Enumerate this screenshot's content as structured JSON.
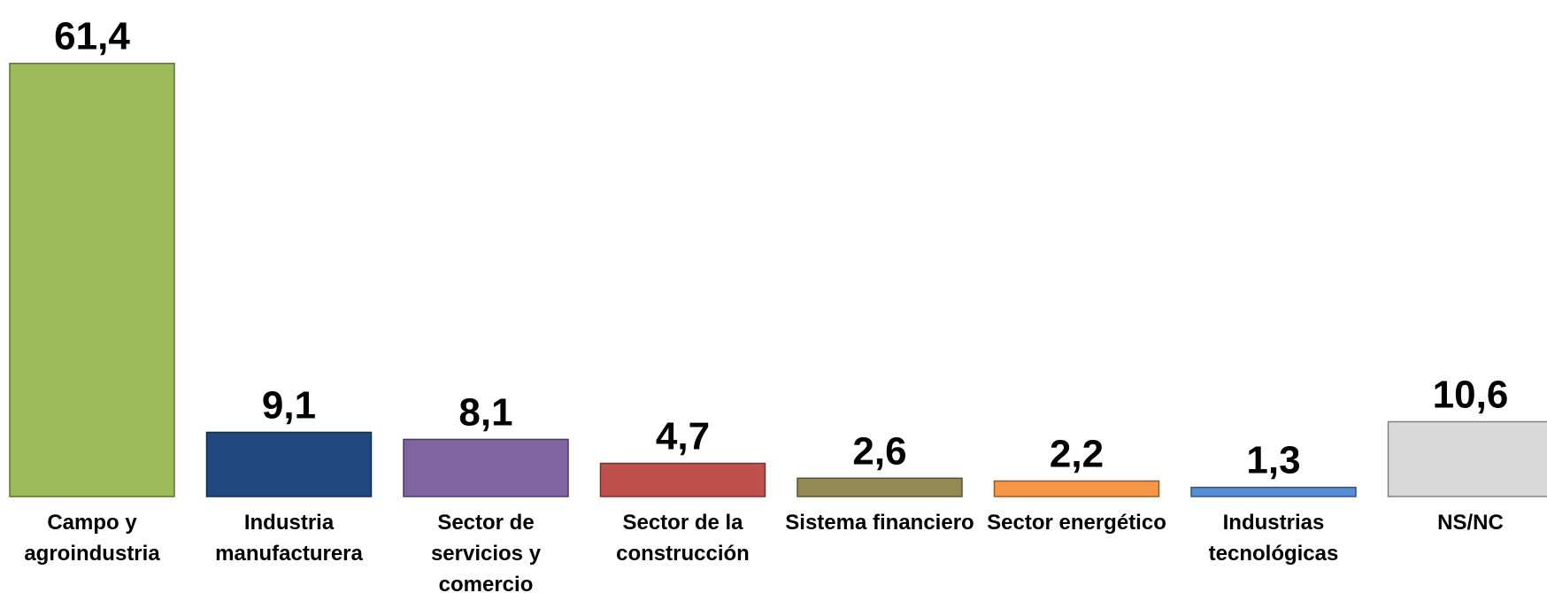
{
  "chart_data": {
    "type": "bar",
    "categories": [
      "Campo y agroindustria",
      "Industria manufacturera",
      "Sector de servicios y comercio",
      "Sector de la construcción",
      "Sistema financiero",
      "Sector energético",
      "Industrias tecnológicas",
      "NS/NC"
    ],
    "values": [
      61.4,
      9.1,
      8.1,
      4.7,
      2.6,
      2.2,
      1.3,
      10.6
    ],
    "value_labels": [
      "61,4",
      "9,1",
      "8,1",
      "4,7",
      "2,6",
      "2,2",
      "1,3",
      "10,6"
    ],
    "colors": [
      "#9bbb59",
      "#1f497d",
      "#8064a2",
      "#c0504d",
      "#948a54",
      "#f79646",
      "#558ed5",
      "#d9d9d9"
    ]
  }
}
